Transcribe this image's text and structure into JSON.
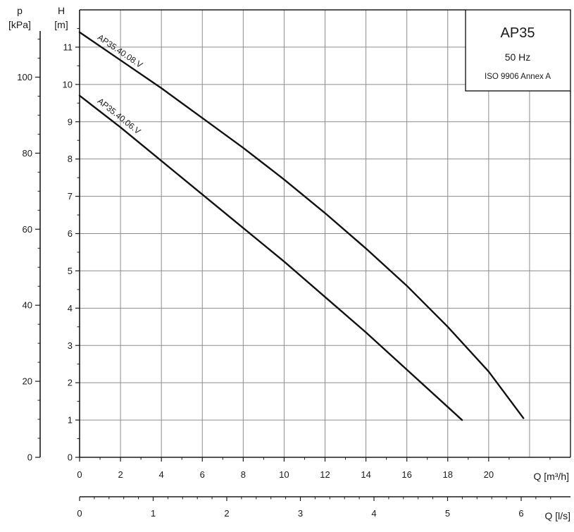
{
  "chart_data": {
    "type": "line",
    "title": "AP35",
    "subtitle_frequency": "50 Hz",
    "subtitle_standard": "ISO 9906 Annex A",
    "axes": {
      "y_head": {
        "label_symbol": "H",
        "label_unit": "[m]",
        "range": [
          0,
          12
        ],
        "ticks": [
          0,
          1,
          2,
          3,
          4,
          5,
          6,
          7,
          8,
          9,
          10,
          11
        ]
      },
      "y_pressure": {
        "label_symbol": "p",
        "label_unit": "[kPa]",
        "range": [
          0,
          117.7
        ],
        "ticks": [
          0,
          20,
          40,
          60,
          80,
          100
        ]
      },
      "x_flow_m3h": {
        "label": "Q [m³/h]",
        "range": [
          0,
          24
        ],
        "ticks": [
          0,
          2,
          4,
          6,
          8,
          10,
          12,
          14,
          16,
          18,
          20
        ]
      },
      "x_flow_ls": {
        "label": "Q [l/s]",
        "range": [
          0,
          6.67
        ],
        "ticks": [
          0,
          1,
          2,
          3,
          4,
          5,
          6
        ]
      }
    },
    "grid": true,
    "series": [
      {
        "name": "AP35.40.08.V",
        "x": [
          0,
          2,
          4,
          6,
          8,
          10,
          12,
          14,
          16,
          18,
          20,
          21.7
        ],
        "y": [
          11.4,
          10.65,
          9.9,
          9.1,
          8.3,
          7.45,
          6.55,
          5.6,
          4.6,
          3.5,
          2.3,
          1.05
        ]
      },
      {
        "name": "AP35.40.06.V",
        "x": [
          0,
          2,
          4,
          6,
          8,
          10,
          12,
          14,
          16,
          18,
          18.7
        ],
        "y": [
          9.7,
          8.85,
          7.95,
          7.05,
          6.15,
          5.25,
          4.3,
          3.35,
          2.35,
          1.35,
          1.0
        ]
      }
    ]
  }
}
